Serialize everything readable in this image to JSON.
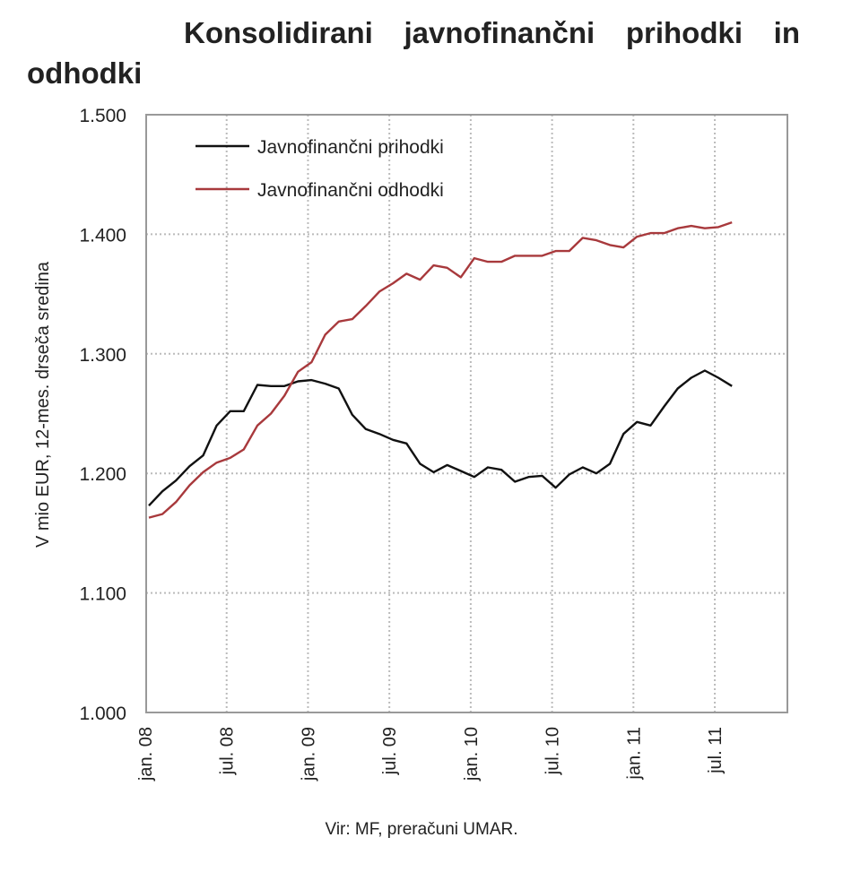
{
  "chart_data": {
    "type": "line",
    "title": "Konsolidirani javnofinančni prihodki in odhodki",
    "ylabel": "V mio EUR, 12-mes. drseča sredina",
    "xlabel": "",
    "ylim": [
      1000,
      1500
    ],
    "yticks": [
      "1.000",
      "1.100",
      "1.200",
      "1.300",
      "1.400",
      "1.500"
    ],
    "ytick_values": [
      1000,
      1100,
      1200,
      1300,
      1400,
      1500
    ],
    "xticks": [
      "jan. 08",
      "jul. 08",
      "jan. 09",
      "jul. 09",
      "jan. 10",
      "jul. 10",
      "jan. 11",
      "jul. 11"
    ],
    "xtick_month_index": [
      0,
      6,
      12,
      18,
      24,
      30,
      36,
      42
    ],
    "x_start": "jan. 08",
    "x_frequency": "monthly",
    "grid": true,
    "legend_position": "top-left",
    "series": [
      {
        "name": "Javnofinančni prihodki",
        "color": "#111111",
        "values": [
          1173,
          1185,
          1194,
          1206,
          1215,
          1240,
          1252,
          1252,
          1274,
          1273,
          1273,
          1277,
          1278,
          1275,
          1271,
          1249,
          1237,
          1233,
          1228,
          1225,
          1208,
          1201,
          1207,
          1202,
          1197,
          1205,
          1203,
          1193,
          1197,
          1198,
          1188,
          1199,
          1205,
          1200,
          1208,
          1233,
          1243,
          1240,
          1256,
          1271,
          1280,
          1286,
          1280,
          1273
        ]
      },
      {
        "name": "Javnofinančni odhodki",
        "color": "#a8393c",
        "values": [
          1163,
          1166,
          1176,
          1190,
          1201,
          1209,
          1213,
          1220,
          1240,
          1250,
          1265,
          1285,
          1293,
          1316,
          1327,
          1329,
          1340,
          1352,
          1359,
          1367,
          1362,
          1374,
          1372,
          1364,
          1380,
          1377,
          1377,
          1382,
          1382,
          1382,
          1386,
          1386,
          1397,
          1395,
          1391,
          1389,
          1398,
          1401,
          1401,
          1405,
          1407,
          1405,
          1406,
          1410
        ]
      }
    ]
  },
  "source": "Vir: MF, preračuni UMAR."
}
